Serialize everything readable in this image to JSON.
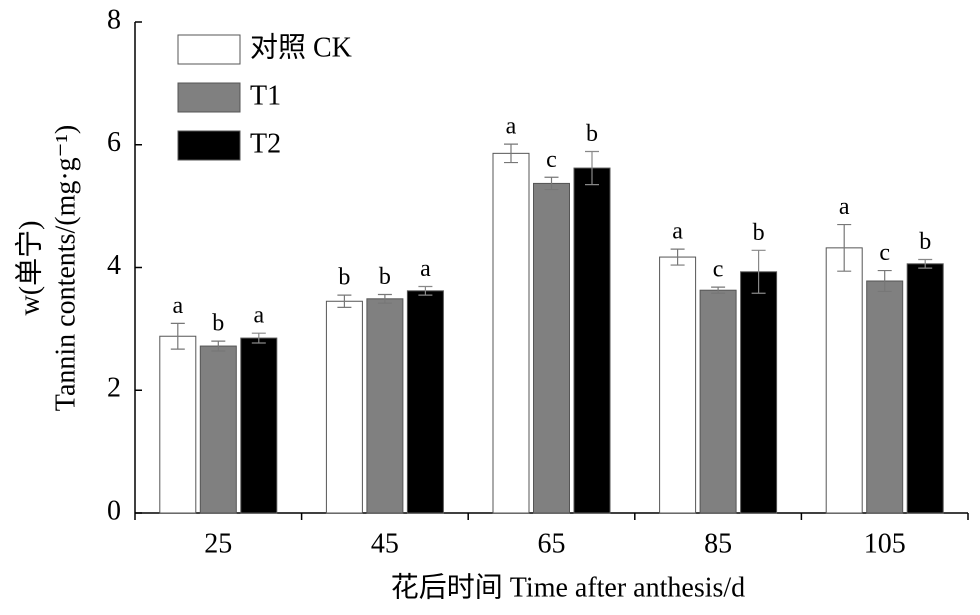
{
  "chart_data": {
    "type": "bar",
    "ylabel": [
      "w(单宁)",
      "Tannin contents/(mg·g⁻¹)"
    ],
    "xlabel": "花后时间 Time after anthesis/d",
    "categories": [
      "25",
      "45",
      "65",
      "85",
      "105"
    ],
    "series": [
      {
        "name": "对照 CK",
        "color": "#ffffff",
        "values": [
          2.88,
          3.45,
          5.86,
          4.17,
          4.32
        ],
        "errors": [
          0.21,
          0.1,
          0.15,
          0.13,
          0.38
        ],
        "letters": [
          "a",
          "b",
          "a",
          "a",
          "a"
        ]
      },
      {
        "name": "T1",
        "color": "#808080",
        "values": [
          2.72,
          3.49,
          5.37,
          3.63,
          3.78
        ],
        "errors": [
          0.08,
          0.07,
          0.1,
          0.05,
          0.17
        ],
        "letters": [
          "b",
          "b",
          "c",
          "c",
          "c"
        ]
      },
      {
        "name": "T2",
        "color": "#000000",
        "values": [
          2.85,
          3.62,
          5.62,
          3.93,
          4.06
        ],
        "errors": [
          0.08,
          0.07,
          0.27,
          0.35,
          0.07
        ],
        "letters": [
          "a",
          "a",
          "b",
          "b",
          "b"
        ]
      }
    ],
    "ylim": [
      0,
      8
    ],
    "yticks": [
      0,
      2,
      4,
      6,
      8
    ],
    "legend": "upper left"
  }
}
